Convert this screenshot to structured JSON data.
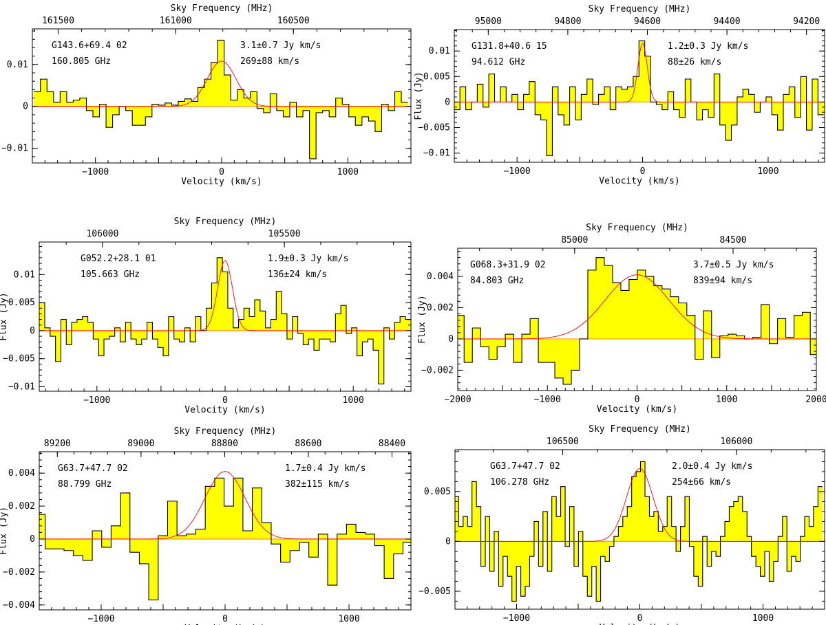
{
  "figure": {
    "x_label": "Velocity (km/s)",
    "y_label": "Flux (Jy)",
    "top_label": "Sky Frequency (MHz)"
  },
  "chart_data": [
    {
      "type": "step",
      "source": "G143.6+69.4 02",
      "line_freq": "160.805 GHz",
      "integrated_flux": "3.1±0.7 Jy km/s",
      "fwhm": "269±88 km/s",
      "xlim": [
        -1500,
        1500
      ],
      "ylim": [
        -0.0135,
        0.0185
      ],
      "show_ylabel": false,
      "x_ticks": [
        -1000,
        0,
        1000
      ],
      "y_ticks": [
        -0.01,
        0,
        0.01
      ],
      "y_tick_labels": [
        "-0.01",
        "0",
        "0.01"
      ],
      "top_ticks": [
        161500,
        161000,
        160500
      ],
      "freq_ref_mhz": 160805,
      "velocity": [
        -1462,
        -1410,
        -1358,
        -1306,
        -1254,
        -1202,
        -1150,
        -1098,
        -1046,
        -994,
        -942,
        -890,
        -838,
        -786,
        -734,
        -682,
        -630,
        -578,
        -526,
        -474,
        -422,
        -370,
        -318,
        -266,
        -214,
        -162,
        -110,
        -58,
        -6,
        46,
        98,
        150,
        202,
        254,
        306,
        358,
        410,
        462,
        514,
        566,
        618,
        670,
        722,
        774,
        826,
        878,
        930,
        982,
        1034,
        1086,
        1138,
        1190,
        1242,
        1294,
        1346,
        1398,
        1450
      ],
      "flux": [
        0.0035,
        0.0065,
        0.0035,
        0.001,
        0.0035,
        0.001,
        0.0015,
        0.002,
        -0.001,
        -0.0025,
        0.0005,
        -0.005,
        -0.002,
        0,
        -0.001,
        -0.0045,
        -0.0045,
        -0.0025,
        0.0005,
        0.0003,
        0.0008,
        0.0003,
        0.0012,
        0.0018,
        0.0012,
        0.0045,
        0.0065,
        0.0105,
        0.0158,
        0.0075,
        0.0015,
        0.004,
        0.002,
        0.0035,
        -0.0005,
        -0.0015,
        0.003,
        -0.001,
        -0.0025,
        0.001,
        -0.0025,
        -0.001,
        -0.0125,
        -0.0015,
        -0.001,
        -0.0025,
        0.002,
        0.0005,
        -0.0025,
        -0.0045,
        -0.0025,
        -0.0035,
        -0.006,
        0.0005,
        -0.001,
        0.0035,
        0.001
      ],
      "fit": {
        "amp": 0.0108,
        "center": 0,
        "fwhm": 269
      }
    },
    {
      "type": "step",
      "source": "G131.8+40.6 15",
      "line_freq": "94.612 GHz",
      "integrated_flux": "1.2±0.3 Jy km/s",
      "fwhm": "88±26 km/s",
      "xlim": [
        -1500,
        1450
      ],
      "ylim": [
        -0.0118,
        0.0142
      ],
      "show_ylabel": true,
      "x_ticks": [
        -1000,
        0,
        1000
      ],
      "y_ticks": [
        -0.01,
        -0.005,
        0,
        0.005,
        0.01
      ],
      "y_tick_labels": [
        "-0.01",
        "-0.005",
        "0",
        "0.005",
        "0.01"
      ],
      "top_ticks": [
        95000,
        94800,
        94600,
        94400,
        94200
      ],
      "freq_ref_mhz": 94612,
      "velocity": [
        -1478,
        -1432,
        -1386,
        -1340,
        -1294,
        -1248,
        -1202,
        -1156,
        -1110,
        -1064,
        -1018,
        -972,
        -926,
        -880,
        -834,
        -788,
        -742,
        -696,
        -650,
        -604,
        -558,
        -512,
        -466,
        -420,
        -374,
        -328,
        -282,
        -236,
        -190,
        -144,
        -98,
        -52,
        -6,
        40,
        86,
        132,
        178,
        224,
        270,
        316,
        362,
        408,
        454,
        500,
        546,
        592,
        638,
        684,
        730,
        776,
        822,
        868,
        914,
        960,
        1006,
        1052,
        1098,
        1144,
        1190,
        1236,
        1282,
        1328,
        1374,
        1420
      ],
      "flux": [
        -0.0015,
        0.003,
        -0.0015,
        0,
        0.0035,
        -0.001,
        0.0055,
        0,
        0.003,
        0,
        0.0015,
        -0.0015,
        0.0015,
        0.004,
        -0.0025,
        -0.0035,
        -0.0105,
        0.003,
        -0.0025,
        -0.0045,
        0.003,
        -0.0035,
        0.0015,
        0.0045,
        -0.0005,
        0.0015,
        0.003,
        -0.0015,
        0.003,
        0.0025,
        0.003,
        0.005,
        0.012,
        0.009,
        0,
        -0.0005,
        -0.0015,
        0.002,
        -0.0015,
        -0.003,
        0.0045,
        0,
        -0.0035,
        -0.0015,
        -0.003,
        0.0055,
        -0.0045,
        -0.0075,
        -0.0045,
        0.001,
        0.0025,
        0.0015,
        -0.002,
        0,
        0.001,
        -0.0025,
        -0.0055,
        0.0015,
        0.003,
        -0.003,
        0.005,
        -0.0055,
        0.0045,
        -0.0025
      ],
      "fit": {
        "amp": 0.0115,
        "center": 0,
        "fwhm": 88
      }
    },
    {
      "type": "step",
      "source": "G052.2+28.1 01",
      "line_freq": "105.663 GHz",
      "integrated_flux": "1.9±0.3 Jy km/s",
      "fwhm": "136±24 km/s",
      "xlim": [
        -1450,
        1450
      ],
      "ylim": [
        -0.0108,
        0.0158
      ],
      "show_ylabel": true,
      "x_ticks": [
        -1000,
        0,
        1000
      ],
      "y_ticks": [
        -0.01,
        -0.005,
        0,
        0.005,
        0.01
      ],
      "y_tick_labels": [
        "-0.01",
        "-0.005",
        "0",
        "0.005",
        "0.01"
      ],
      "top_ticks": [
        106000,
        105500
      ],
      "freq_ref_mhz": 105663,
      "velocity": [
        -1428,
        -1386,
        -1344,
        -1302,
        -1260,
        -1218,
        -1176,
        -1134,
        -1092,
        -1050,
        -1008,
        -966,
        -924,
        -882,
        -840,
        -798,
        -756,
        -714,
        -672,
        -630,
        -588,
        -546,
        -504,
        -462,
        -420,
        -378,
        -336,
        -294,
        -252,
        -210,
        -168,
        -126,
        -84,
        -42,
        0,
        42,
        84,
        126,
        168,
        210,
        252,
        294,
        336,
        378,
        420,
        462,
        504,
        546,
        588,
        630,
        672,
        714,
        756,
        798,
        840,
        882,
        924,
        966,
        1008,
        1050,
        1092,
        1134,
        1176,
        1218,
        1260,
        1302,
        1344,
        1386,
        1428
      ],
      "flux": [
        0.005,
        0.0005,
        -0.001,
        -0.0055,
        0.002,
        -0.0025,
        0.0015,
        0.002,
        0.0025,
        0.0015,
        -0.0015,
        -0.0045,
        -0.0015,
        -0.001,
        0.0005,
        -0.002,
        0.0015,
        -0.0015,
        -0.0025,
        -0.0015,
        0.0015,
        -0.0015,
        -0.003,
        -0.0045,
        0.0025,
        -0.0015,
        -0.002,
        0.0005,
        -0.002,
        0.0025,
        0,
        0.004,
        0.0085,
        0.013,
        0.0105,
        0.004,
        0.0005,
        0.002,
        0.004,
        0.0025,
        0.0055,
        0.0035,
        0.0005,
        0.002,
        0.007,
        0.003,
        -0.0015,
        0.0025,
        -0.0005,
        -0.0025,
        -0.0015,
        -0.0035,
        -0.0015,
        -0.0015,
        -0.002,
        0.003,
        0.0045,
        -0.0005,
        0.0005,
        -0.0045,
        -0.002,
        -0.0015,
        -0.0035,
        -0.0095,
        0.0005,
        -0.0015,
        0.0015,
        0.0025,
        0.002
      ],
      "fit": {
        "amp": 0.0125,
        "center": 0,
        "fwhm": 136
      }
    },
    {
      "type": "step",
      "source": "G068.3+31.9 02",
      "line_freq": "84.803 GHz",
      "integrated_flux": "3.7±0.5 Jy km/s",
      "fwhm": "839±94 km/s",
      "xlim": [
        -2000,
        2000
      ],
      "ylim": [
        -0.0033,
        0.0058
      ],
      "show_ylabel": true,
      "x_ticks": [
        -2000,
        -1000,
        0,
        1000,
        2000
      ],
      "y_ticks": [
        -0.002,
        0,
        0.002,
        0.004
      ],
      "y_tick_labels": [
        "-0.002",
        "0",
        "0.002",
        "0.004"
      ],
      "top_ticks": [
        85000,
        84500
      ],
      "freq_ref_mhz": 84803,
      "velocity": [
        -1975,
        -1883,
        -1791,
        -1699,
        -1607,
        -1515,
        -1423,
        -1331,
        -1239,
        -1147,
        -1055,
        -963,
        -871,
        -779,
        -687,
        -595,
        -503,
        -411,
        -319,
        -227,
        -135,
        -43,
        49,
        141,
        233,
        325,
        417,
        509,
        601,
        693,
        785,
        877,
        969,
        1061,
        1153,
        1245,
        1337,
        1429,
        1521,
        1613,
        1705,
        1797,
        1889,
        1975
      ],
      "flux": [
        0.0015,
        -0.0015,
        0.0007,
        -0.0005,
        -0.0013,
        -0.0005,
        0.0003,
        -0.0015,
        0.0003,
        0.0013,
        -0.0015,
        -0.0015,
        -0.0025,
        -0.0029,
        -0.002,
        0.0,
        0.0044,
        0.0052,
        0.0047,
        0.0036,
        0.0031,
        0.0038,
        0.0044,
        0.004,
        0.0034,
        0.0032,
        0.0027,
        0.0023,
        0.0015,
        -0.0013,
        0.0018,
        -0.0012,
        0.0002,
        0.0003,
        0.0002,
        0.0,
        0.0001,
        0.0022,
        -0.0003,
        0.0013,
        0.0001,
        0.0015,
        0.0017,
        -0.001
      ],
      "fit": {
        "amp": 0.0041,
        "center": 0,
        "fwhm": 839
      }
    },
    {
      "type": "step",
      "source": "G63.7+47.7 02",
      "line_freq": "88.799 GHz",
      "integrated_flux": "1.7±0.4 Jy km/s",
      "fwhm": "382±115 km/s",
      "xlim": [
        -1500,
        1500
      ],
      "ylim": [
        -0.0043,
        0.0053
      ],
      "show_ylabel": true,
      "x_ticks": [
        -1000,
        0,
        1000
      ],
      "y_ticks": [
        -0.004,
        -0.002,
        0,
        0.002,
        0.004
      ],
      "y_tick_labels": [
        "-0.004",
        "-0.002",
        "0",
        "0.002",
        "0.004"
      ],
      "top_ticks": [
        89200,
        89000,
        88800,
        88600,
        88400
      ],
      "freq_ref_mhz": 88799,
      "velocity": [
        -1490,
        -1414,
        -1338,
        -1262,
        -1186,
        -1110,
        -1034,
        -958,
        -882,
        -806,
        -730,
        -654,
        -578,
        -502,
        -426,
        -350,
        -274,
        -198,
        -122,
        -46,
        30,
        106,
        182,
        258,
        334,
        410,
        486,
        562,
        638,
        714,
        790,
        866,
        942,
        1018,
        1094,
        1170,
        1246,
        1322,
        1398,
        1474
      ],
      "flux": [
        0.0015,
        -0.0006,
        -0.0006,
        -0.0007,
        -0.001,
        -0.0013,
        0.0005,
        -0.0005,
        0.0008,
        0.0028,
        -0.0008,
        -0.0015,
        -0.0037,
        0.0002,
        0.0023,
        0.0002,
        0.0003,
        0.0006,
        0.0032,
        0.0037,
        0.002,
        0.0037,
        0.0005,
        0.0031,
        0.001,
        -0.0003,
        -0.0014,
        -0.0007,
        -0.0002,
        -0.0011,
        0.0003,
        -0.0028,
        0.0003,
        0.0009,
        0.0004,
        0.0003,
        -0.0004,
        -0.0024,
        -0.0009,
        -0.0002
      ],
      "fit": {
        "amp": 0.0041,
        "center": 0,
        "fwhm": 382
      }
    },
    {
      "type": "step",
      "source": "G63.7+47.7 02",
      "line_freq": "106.278 GHz",
      "integrated_flux": "2.0±0.4 Jy km/s",
      "fwhm": "254±66 km/s",
      "xlim": [
        -1500,
        1500
      ],
      "ylim": [
        -0.0068,
        0.0092
      ],
      "show_ylabel": false,
      "x_ticks": [
        -1000,
        0,
        1000
      ],
      "y_ticks": [
        -0.005,
        0,
        0.005
      ],
      "y_tick_labels": [
        "-0.005",
        "0",
        "0.005"
      ],
      "top_ticks": [
        106500,
        106000
      ],
      "freq_ref_mhz": 106278,
      "velocity": [
        -1488,
        -1452,
        -1416,
        -1380,
        -1344,
        -1308,
        -1272,
        -1236,
        -1200,
        -1164,
        -1128,
        -1092,
        -1056,
        -1020,
        -984,
        -948,
        -912,
        -876,
        -840,
        -804,
        -768,
        -732,
        -696,
        -660,
        -624,
        -588,
        -552,
        -516,
        -480,
        -444,
        -408,
        -372,
        -336,
        -300,
        -264,
        -228,
        -192,
        -156,
        -120,
        -84,
        -48,
        -12,
        24,
        60,
        96,
        132,
        168,
        204,
        240,
        276,
        312,
        348,
        384,
        420,
        456,
        492,
        528,
        564,
        600,
        636,
        672,
        708,
        744,
        780,
        816,
        852,
        888,
        924,
        960,
        996,
        1032,
        1068,
        1104,
        1140,
        1176,
        1212,
        1248,
        1284,
        1320,
        1356,
        1392,
        1428,
        1464
      ],
      "flux": [
        0.0045,
        0.0015,
        0.0025,
        0.0015,
        0.006,
        0.0035,
        -0.0025,
        0.0025,
        -0.003,
        0.001,
        -0.0045,
        -0.0015,
        -0.0035,
        -0.006,
        -0.0025,
        -0.0055,
        -0.0045,
        -0.0015,
        0.002,
        -0.0025,
        0.003,
        -0.003,
        0.0045,
        0.0025,
        0.0055,
        -0.0005,
        0.0035,
        -0.0025,
        0.001,
        -0.0035,
        -0.0055,
        -0.0025,
        -0.006,
        -0.0015,
        -0.002,
        -0.0005,
        0.0005,
        0.0015,
        0.0025,
        0.0035,
        0.0065,
        0.007,
        0.008,
        0.0045,
        0.0025,
        0.003,
        0.001,
        0.0015,
        0.0045,
        0.0015,
        -0.001,
        0.0015,
        0.0045,
        -0.0005,
        -0.0035,
        -0.0045,
        0.0005,
        -0.0025,
        -0.001,
        -0.0015,
        0.0005,
        0.002,
        0.0035,
        0.004,
        0.0045,
        0.003,
        0.0005,
        -0.0015,
        -0.0025,
        -0.0035,
        -0.001,
        -0.004,
        -0.002,
        0.0005,
        0.0025,
        -0.003,
        -0.0015,
        -0.002,
        0.0005,
        0.0025,
        0.0015,
        0.0035,
        0.0055
      ],
      "fit": {
        "amp": 0.0073,
        "center": 0,
        "fwhm": 254
      }
    }
  ]
}
